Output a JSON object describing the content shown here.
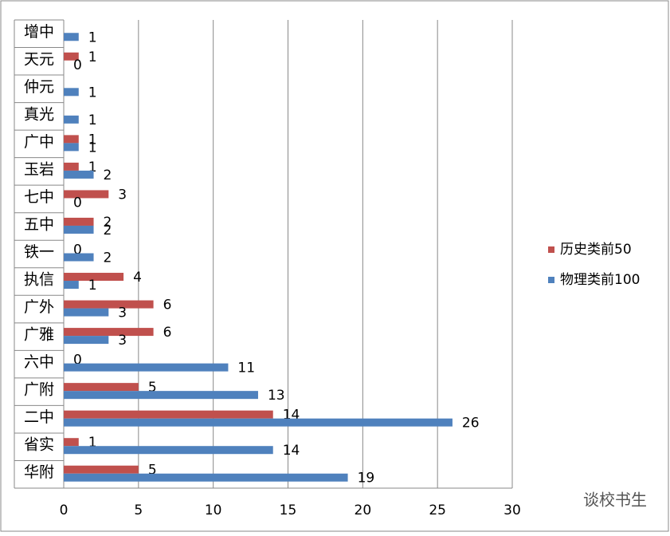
{
  "chart_data": {
    "type": "bar",
    "orientation": "horizontal",
    "categories": [
      "增中",
      "天元",
      "仲元",
      "真光",
      "广中",
      "玉岩",
      "七中",
      "五中",
      "铁一",
      "执信",
      "广外",
      "广雅",
      "六中",
      "广附",
      "二中",
      "省实",
      "华附"
    ],
    "series": [
      {
        "name": "历史类前50",
        "color": "#c0504d",
        "values": [
          null,
          1,
          null,
          null,
          1,
          1,
          3,
          2,
          0,
          4,
          6,
          6,
          0,
          5,
          14,
          1,
          5
        ]
      },
      {
        "name": "物理类前100",
        "color": "#4f81bd",
        "values": [
          1,
          0,
          1,
          1,
          1,
          2,
          0,
          2,
          2,
          1,
          3,
          3,
          11,
          13,
          26,
          14,
          19
        ]
      }
    ],
    "xlim": [
      0,
      30
    ],
    "xticks": [
      0,
      5,
      10,
      15,
      20,
      25,
      30
    ],
    "grid": true,
    "legend": "right",
    "watermark": "谈校书生"
  }
}
